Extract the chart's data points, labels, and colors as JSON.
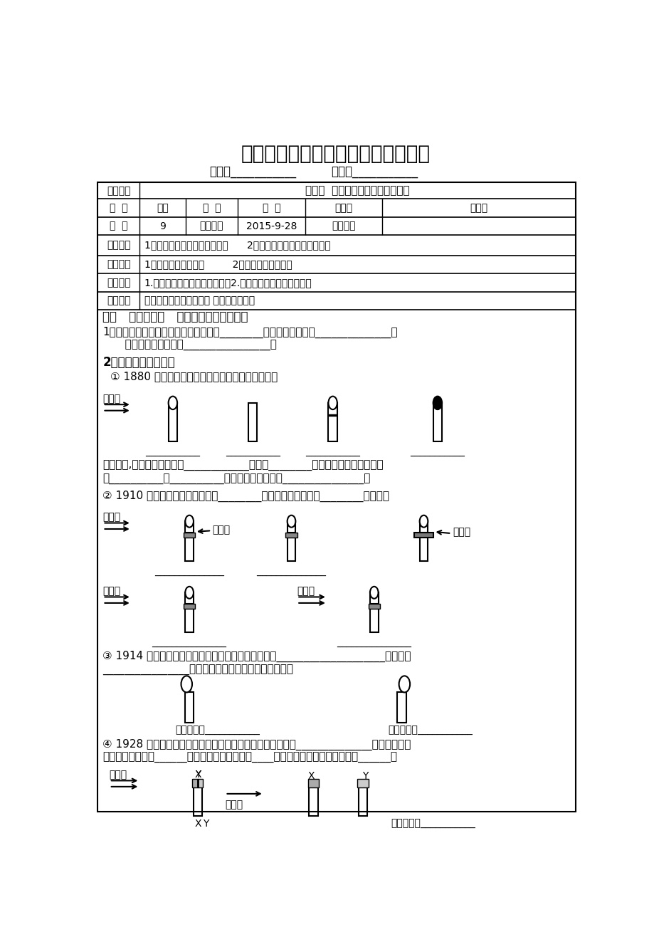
{
  "title": "连云港市田家炳中学高二生物导学案",
  "subtitle_left": "班级：___________",
  "subtitle_right": "姓名：___________",
  "bg_color": "#ffffff",
  "table_rows": [
    [
      "课题名称",
      "第四节  植物生命活动的调节（一）",
      "",
      "",
      "",
      ""
    ],
    [
      "班  级",
      "高二",
      "课  型",
      "新  授",
      "主备人",
      "徐丽丽"
    ],
    [
      "课  时",
      "9",
      "备课时间",
      "2015-9-28",
      "上课时间",
      ""
    ],
    [
      "学习目标",
      "1、概述植物生长素的发现过程      2、概述植物生长素的生理作用",
      "",
      "",
      "",
      ""
    ],
    [
      "学习重点",
      "1、生长素的发现过程         2、生长素的生理作用",
      "",
      "",
      "",
      ""
    ],
    [
      "学习难点",
      "1.生长素的产生、运输和发布；2.科学实验设计的严谨性分析",
      "",
      "",
      "",
      ""
    ],
    [
      "学法指导",
      "讲述法、观察法、探究法 、小组相互讨论",
      "",
      "",
      "",
      ""
    ]
  ],
  "section1": "一、   自学质疑：   （植物生长素的发现）",
  "q1_line1": "1、植物生长与光源有着密切的关系。在________的照射下，植物会______________，",
  "q1_line2": "   通常把这种现象称为________________。",
  "q2_head": "2、生长素的发现历程",
  "exp1_head": "① 1880 年，达尔文的实验（横线上写出生长方向）",
  "exp1_note": "实验表明,胚芽鞘的尖端不仅____________，并在________的照射下导致下部的伸长",
  "exp1_note2": "区__________比__________生长快，结果胚芽鞘_______________。",
  "exp2_head": "② 1910 年，詹森通过实验证明，________能让这种影响通过，________则不能。",
  "exp3_head": "③ 1914 年，拜尔通过实验证明，胚芽鞘的弯曲生长是____________________在其下部",
  "exp3_note": "________________造成的。（两组胚芽鞘都在黑暗中）",
  "exp4_head": "④ 1928 年，荷兰科学家温特的实验，胚芽鞘尖端确实产生了______________的化学物质，",
  "exp4_note": "这种物质能从尖端______运输，并且它的分布受____的影响，温特把这种物质命名______。",
  "label_dan_ce_guang": "单侧光",
  "label_qiong_zhi": "琼脂片",
  "label_yun_mu": "云母片",
  "label_grow_dir": "生长方向：",
  "blank_short": "___________",
  "blank_medium": "______________",
  "blank_long": "_______________"
}
